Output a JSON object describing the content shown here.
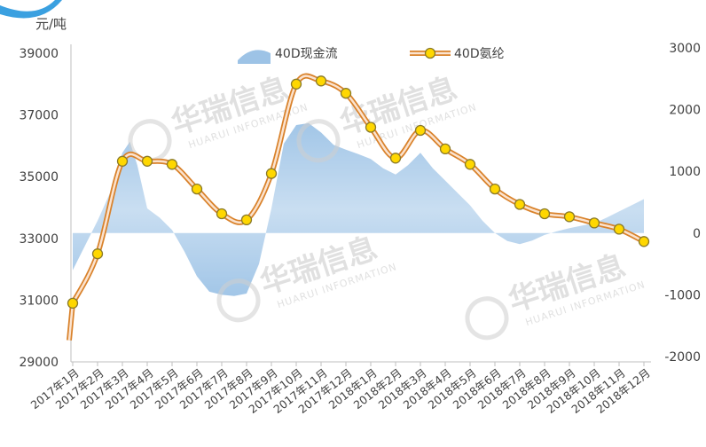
{
  "chart_data": {
    "type": "line",
    "left_unit": "元/吨",
    "left_axis": {
      "ticks": [
        "39000",
        "37000",
        "35000",
        "33000",
        "31000",
        "29000"
      ],
      "ylim": [
        29000,
        39000
      ]
    },
    "right_axis": {
      "ticks": [
        "3000",
        "2000",
        "1000",
        "0",
        "-1000",
        "-2000"
      ],
      "ylim": [
        -2000,
        3000
      ]
    },
    "categories": [
      "2017年1月",
      "2017年2月",
      "2017年3月",
      "2017年4月",
      "2017年5月",
      "2017年6月",
      "2017年7月",
      "2017年8月",
      "2017年9月",
      "2017年10月",
      "2017年11月",
      "2017年12月",
      "2018年1月",
      "2018年2月",
      "2018年3月",
      "2018年4月",
      "2018年5月",
      "2018年6月",
      "2018年7月",
      "2018年8月",
      "2018年9月",
      "2018年10月",
      "2018年11月",
      "2018年12月"
    ],
    "series": [
      {
        "name": "40D现金流",
        "type": "area",
        "axis": "right",
        "color": "#9dc3e6",
        "x": [
          0,
          0.5,
          1,
          1.5,
          2,
          2.3,
          2.6,
          3,
          3.5,
          4,
          4.5,
          5,
          5.5,
          6,
          6.5,
          7,
          7.5,
          8,
          8.5,
          9,
          9.5,
          10,
          10.5,
          11,
          11.5,
          12,
          12.5,
          13,
          13.5,
          14,
          14.5,
          15,
          15.5,
          16,
          16.5,
          17,
          17.5,
          18,
          18.5,
          19,
          19.5,
          20,
          20.5,
          21,
          21.5,
          22,
          22.5,
          23
        ],
        "values": [
          -600,
          -200,
          200,
          650,
          1300,
          1480,
          1100,
          400,
          250,
          50,
          -300,
          -700,
          -950,
          -1000,
          -1020,
          -980,
          -500,
          400,
          1450,
          1750,
          1780,
          1630,
          1430,
          1350,
          1280,
          1200,
          1050,
          950,
          1100,
          1300,
          1050,
          850,
          650,
          450,
          200,
          0,
          -130,
          -180,
          -120,
          -30,
          30,
          80,
          120,
          160,
          250,
          350,
          450,
          550
        ]
      },
      {
        "name": "40D氨纶",
        "type": "line",
        "axis": "left",
        "color": "#f4b183",
        "marker_color": "#ffd700",
        "values": [
          30900,
          32500,
          35500,
          35500,
          35400,
          34600,
          33800,
          33600,
          35100,
          38000,
          38100,
          37700,
          36600,
          35600,
          36500,
          35900,
          35400,
          34600,
          34100,
          33800,
          33700,
          33500,
          33300,
          32900
        ]
      }
    ],
    "legend": {
      "position": "top-center"
    },
    "grid": false
  },
  "watermark": {
    "brand_cn": "华瑞信息",
    "brand_en": "HUARUI INFORMATION"
  }
}
